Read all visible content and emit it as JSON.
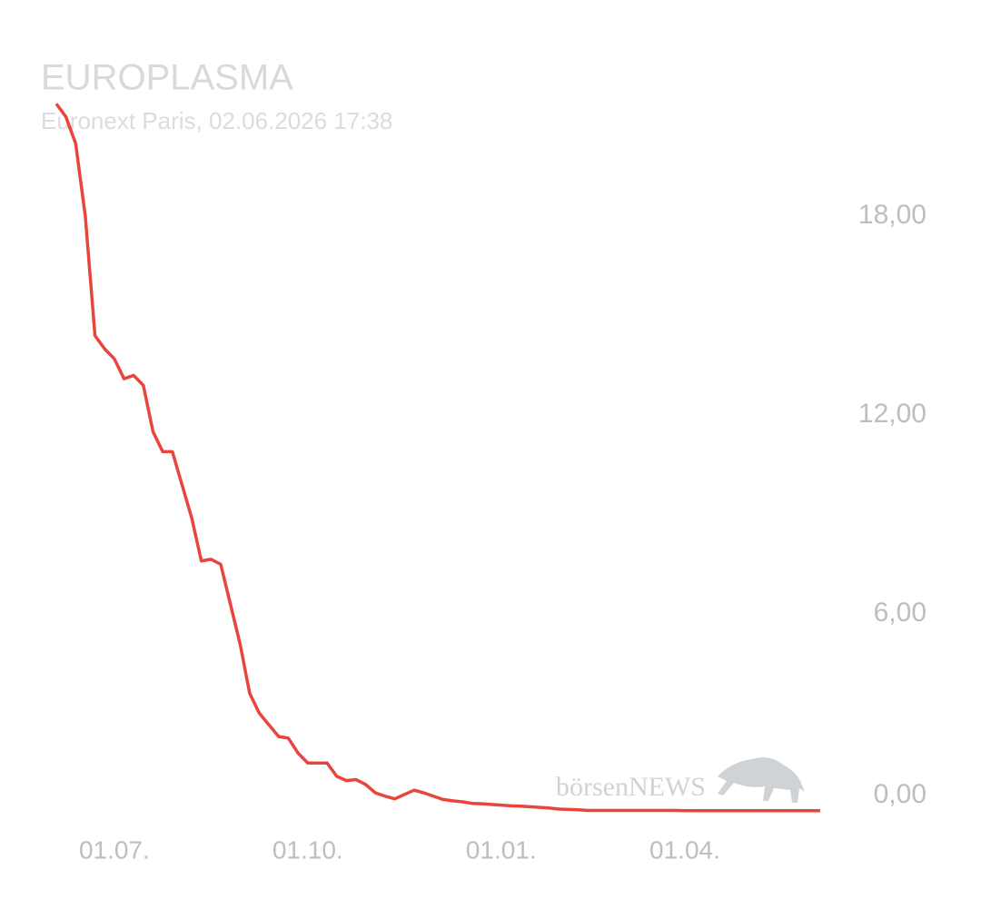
{
  "chart_data": {
    "type": "line",
    "title": "EUROPLASMA",
    "subtitle": "Euronext Paris, 02.06.2026 17:38",
    "watermark": "börsenNEWS",
    "categories": [
      null,
      null,
      null,
      null,
      null,
      null,
      "01.07.",
      null,
      null,
      null,
      null,
      null,
      null,
      null,
      null,
      null,
      null,
      null,
      null,
      null,
      null,
      null,
      null,
      null,
      null,
      null,
      "01.10.",
      null,
      null,
      null,
      null,
      null,
      null,
      null,
      null,
      null,
      null,
      null,
      null,
      null,
      null,
      null,
      null,
      null,
      null,
      null,
      "01.01.",
      null,
      null,
      null,
      null,
      null,
      null,
      null,
      null,
      null,
      null,
      null,
      null,
      null,
      null,
      null,
      null,
      null,
      null,
      "01.04.",
      null,
      null,
      null,
      null,
      null,
      null,
      null,
      null,
      null,
      null,
      null,
      null,
      null,
      null
    ],
    "series": [
      {
        "name": "EUROPLASMA",
        "color": "#e8453c",
        "values": [
          21.4,
          21.0,
          20.2,
          18.0,
          14.4,
          14.0,
          13.7,
          13.1,
          13.2,
          12.9,
          11.5,
          10.9,
          10.9,
          9.9,
          8.9,
          7.6,
          7.65,
          7.5,
          6.3,
          5.1,
          3.6,
          3.0,
          2.65,
          2.3,
          2.25,
          1.8,
          1.5,
          1.5,
          1.5,
          1.1,
          0.97,
          1.0,
          0.85,
          0.6,
          0.5,
          0.42,
          0.55,
          0.68,
          0.6,
          0.5,
          0.4,
          0.36,
          0.33,
          0.28,
          0.27,
          0.25,
          0.23,
          0.21,
          0.2,
          0.18,
          0.16,
          0.14,
          0.11,
          0.1,
          0.09,
          0.07,
          0.07,
          0.07,
          0.07,
          0.07,
          0.07,
          0.07,
          0.07,
          0.07,
          0.07,
          0.06,
          0.06,
          0.06,
          0.06,
          0.06,
          0.06,
          0.06,
          0.06,
          0.06,
          0.06,
          0.06,
          0.06,
          0.06,
          0.06,
          0.06
        ]
      }
    ],
    "ylim": [
      0,
      21.9
    ],
    "yticks": [
      {
        "value": 0,
        "label": "0,00"
      },
      {
        "value": 6,
        "label": "6,00"
      },
      {
        "value": 12,
        "label": "12,00"
      },
      {
        "value": 18,
        "label": "18,00"
      }
    ],
    "grid": false
  }
}
